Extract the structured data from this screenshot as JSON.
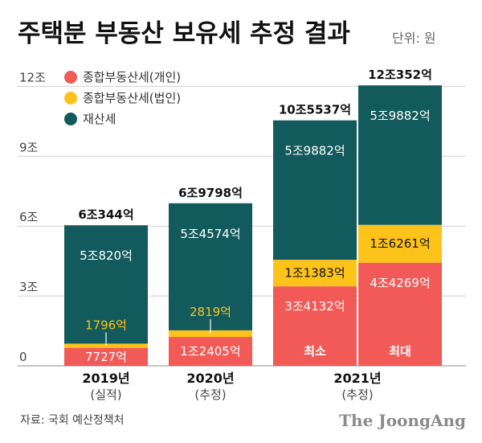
{
  "title": "주택분 부동산 보유세 추정 결과",
  "unit": "단위: 원",
  "source": "자료: 국회 예산정책처",
  "brand": "The JoongAng",
  "colors": {
    "red": "#f15a57",
    "yellow": "#fdc31a",
    "teal": "#135a5c",
    "grid": "#cfcfcf",
    "connector": "#ffffff"
  },
  "chart_data": {
    "type": "bar",
    "stacked": true,
    "ylim": [
      0,
      12.6
    ],
    "yticks": [
      {
        "value": 0,
        "label": "0"
      },
      {
        "value": 3,
        "label": "3조"
      },
      {
        "value": 6,
        "label": "6조"
      },
      {
        "value": 9,
        "label": "9조"
      },
      {
        "value": 12,
        "label": "12조"
      }
    ],
    "grid": true,
    "legend_position": "top-left",
    "categories": [
      "2019년",
      "2020년",
      "2021년",
      "2021년"
    ],
    "sublabels": [
      "(실적)",
      "(추정)",
      "(추정)",
      "(추정)"
    ],
    "category_groups": [
      {
        "label": "2019년",
        "sublabel": "(실적)",
        "bars": [
          0
        ]
      },
      {
        "label": "2020년",
        "sublabel": "(추정)",
        "bars": [
          1
        ]
      },
      {
        "label": "2021년",
        "sublabel": "(추정)",
        "bars": [
          2,
          3
        ]
      }
    ],
    "series": [
      {
        "name": "종합부동산세(개인)",
        "color": "#f15a57",
        "values": [
          0.7727,
          1.2405,
          3.4132,
          4.4269
        ],
        "labels": [
          "7727억",
          "1조2405억",
          "3조4132억",
          "4조4269억"
        ],
        "label_color": "#ffffff"
      },
      {
        "name": "종합부동산세(법인)",
        "color": "#fdc31a",
        "values": [
          0.1796,
          0.2819,
          1.1383,
          1.6261
        ],
        "labels": [
          "1796억",
          "2819억",
          "1조1383억",
          "1조6261억"
        ],
        "label_color": "#fdc31a"
      },
      {
        "name": "재산세",
        "color": "#135a5c",
        "values": [
          5.082,
          5.4574,
          5.9882,
          5.9882
        ],
        "labels": [
          "5조820억",
          "5조4574억",
          "5조9882억",
          "5조9882억"
        ],
        "label_color": "#ffffff"
      }
    ],
    "totals": [
      "6조344억",
      "6조9798억",
      "10조5537억",
      "12조352억"
    ],
    "bar_annotations": [
      "",
      "",
      "최소",
      "최대"
    ]
  }
}
